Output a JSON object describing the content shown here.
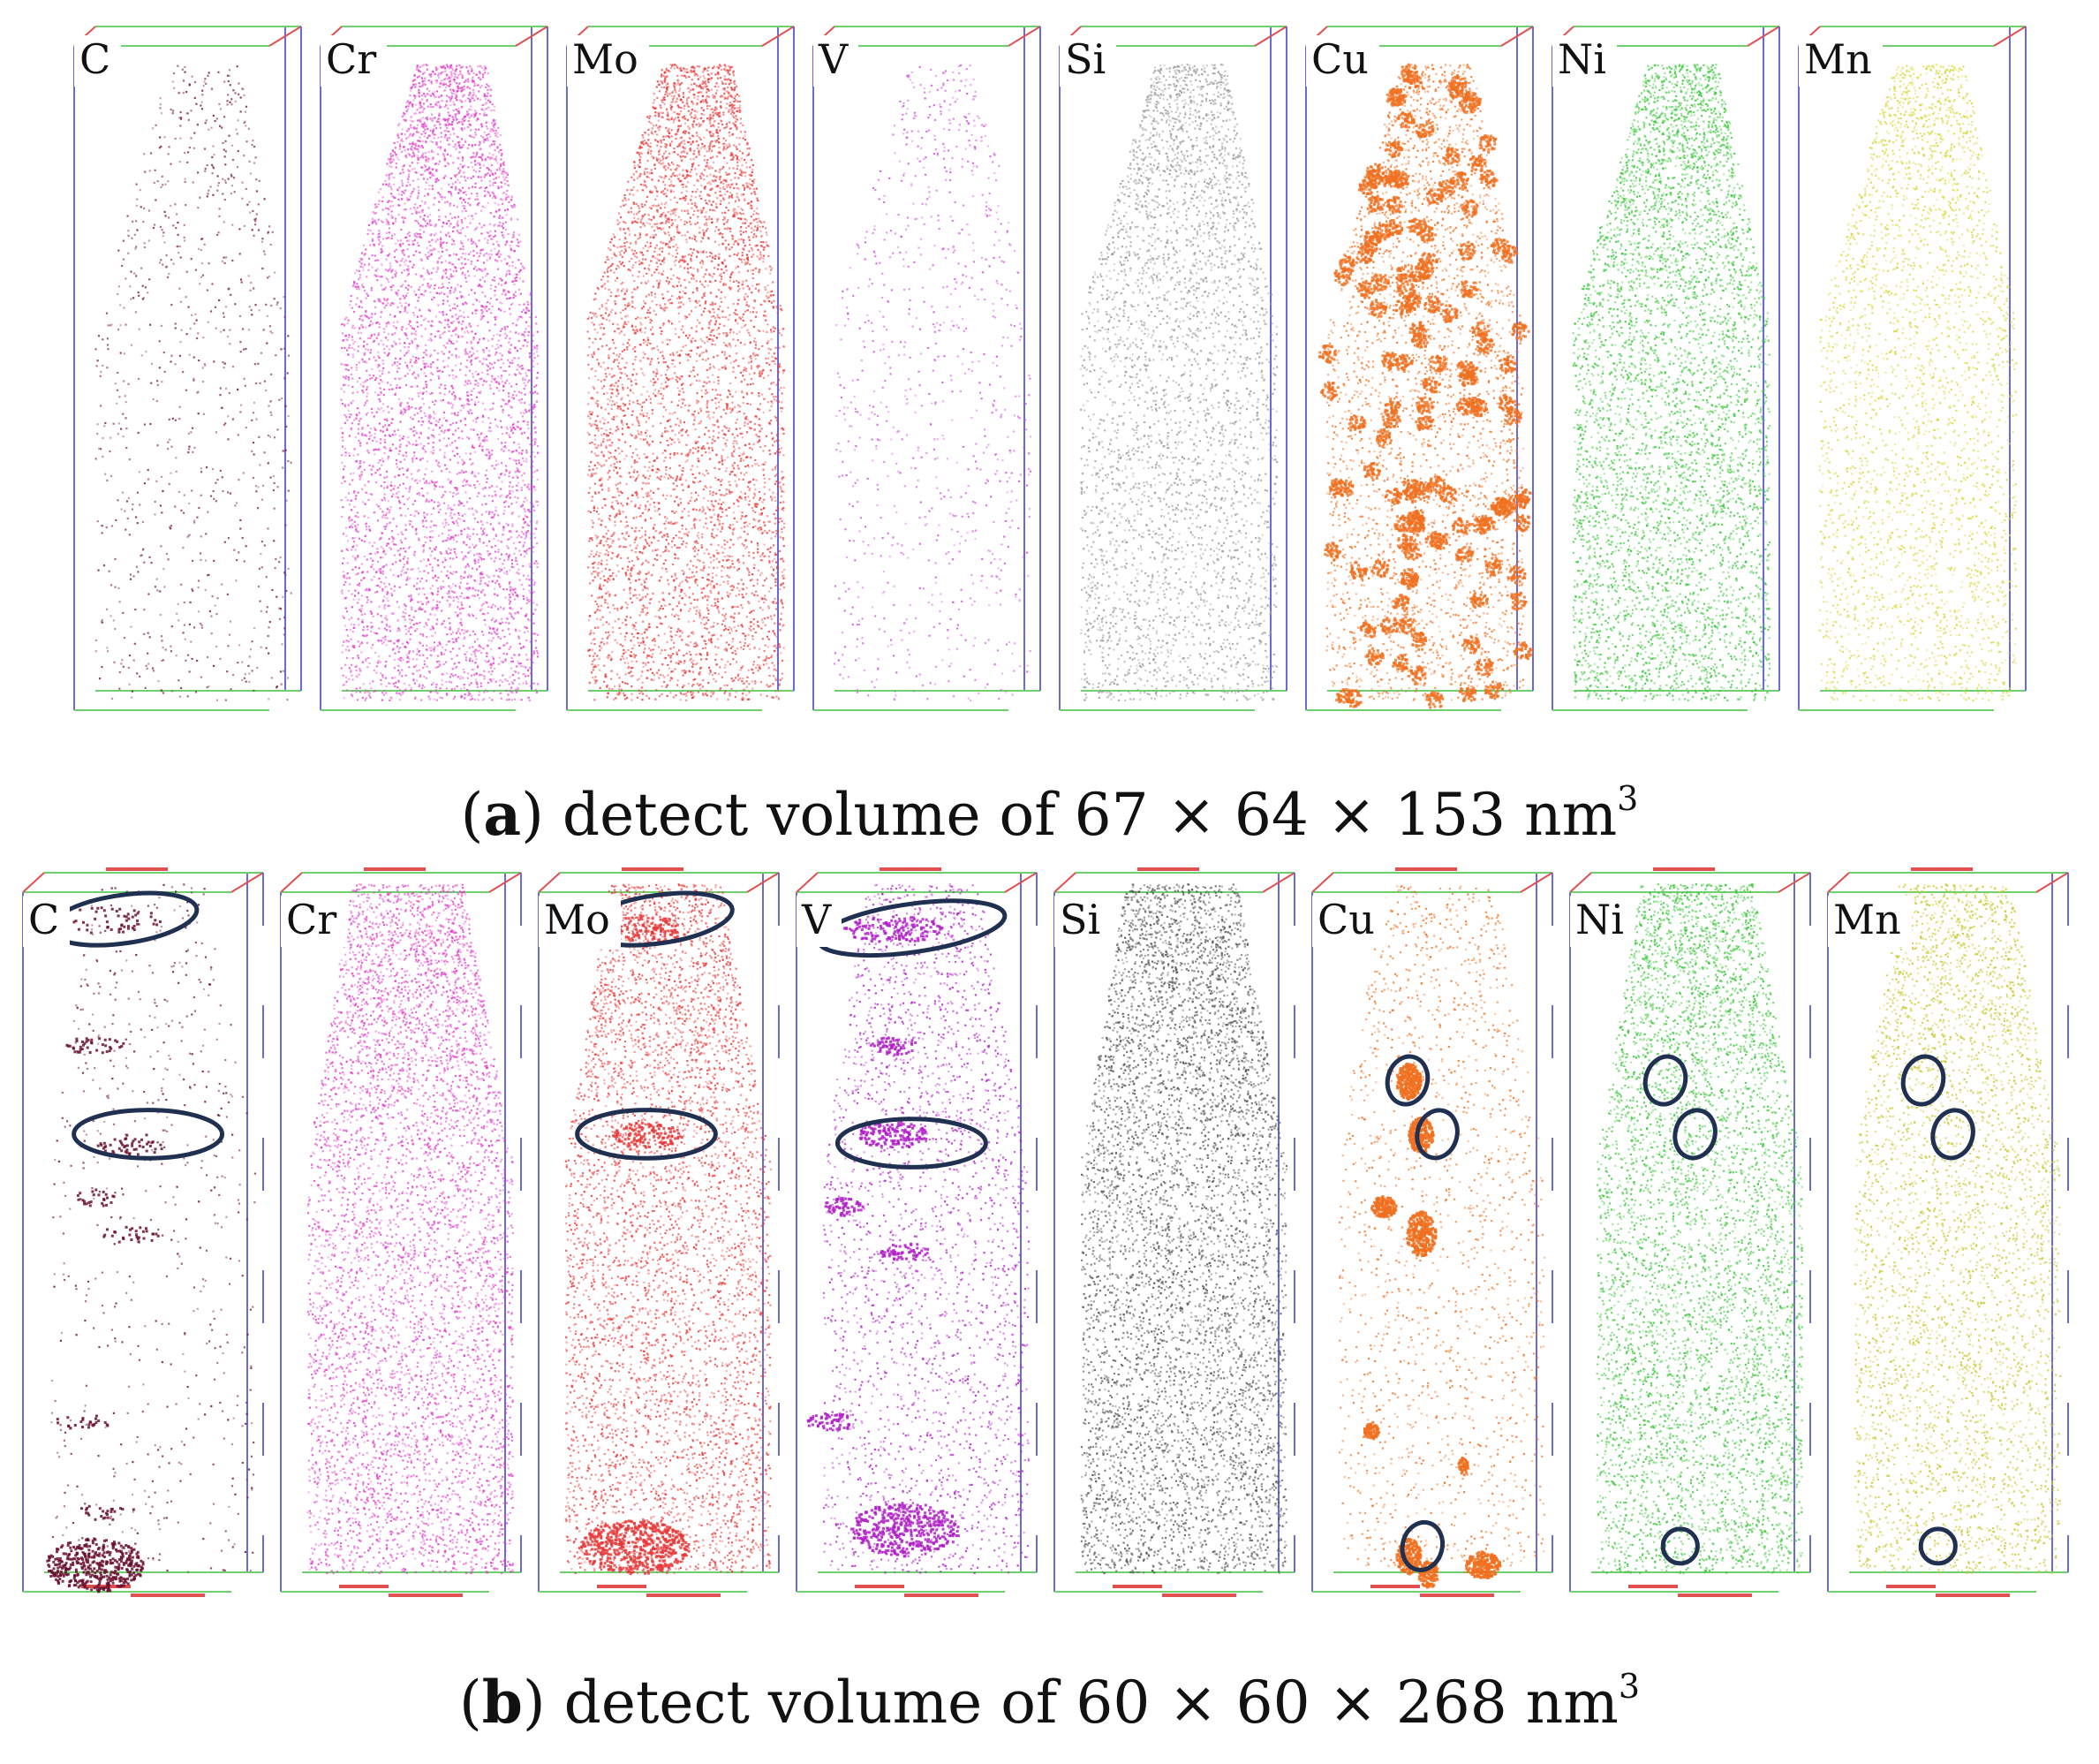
{
  "figure": {
    "panel_a": {
      "caption_letter": "a",
      "caption_text": "detect volume of 67 × 64 × 153 nm",
      "caption_superscript": "3",
      "elements": [
        {
          "symbol": "C",
          "color": "#7a1f3d"
        },
        {
          "symbol": "Cr",
          "color": "#e040c8"
        },
        {
          "symbol": "Mo",
          "color": "#e83a3a"
        },
        {
          "symbol": "V",
          "color": "#d050e0"
        },
        {
          "symbol": "Si",
          "color": "#9a9a9a"
        },
        {
          "symbol": "Cu",
          "color": "#f07020"
        },
        {
          "symbol": "Ni",
          "color": "#3cc83c"
        },
        {
          "symbol": "Mn",
          "color": "#d8d840"
        }
      ]
    },
    "panel_b": {
      "caption_letter": "b",
      "caption_text": "detect volume of 60 × 60 × 268 nm",
      "caption_superscript": "3",
      "elements": [
        {
          "symbol": "C",
          "color": "#6a1030"
        },
        {
          "symbol": "Cr",
          "color": "#e040c8"
        },
        {
          "symbol": "Mo",
          "color": "#e83a3a"
        },
        {
          "symbol": "V",
          "color": "#b020c8"
        },
        {
          "symbol": "Si",
          "color": "#555555"
        },
        {
          "symbol": "Cu",
          "color": "#f07020"
        },
        {
          "symbol": "Ni",
          "color": "#3cc83c"
        },
        {
          "symbol": "Mn",
          "color": "#c8c830"
        }
      ]
    },
    "annotation_color": "#1f3050",
    "box_edge_colors": {
      "vertical": "#6a6ae0",
      "horizontal": "#70d070",
      "accent": "#e05050"
    }
  }
}
